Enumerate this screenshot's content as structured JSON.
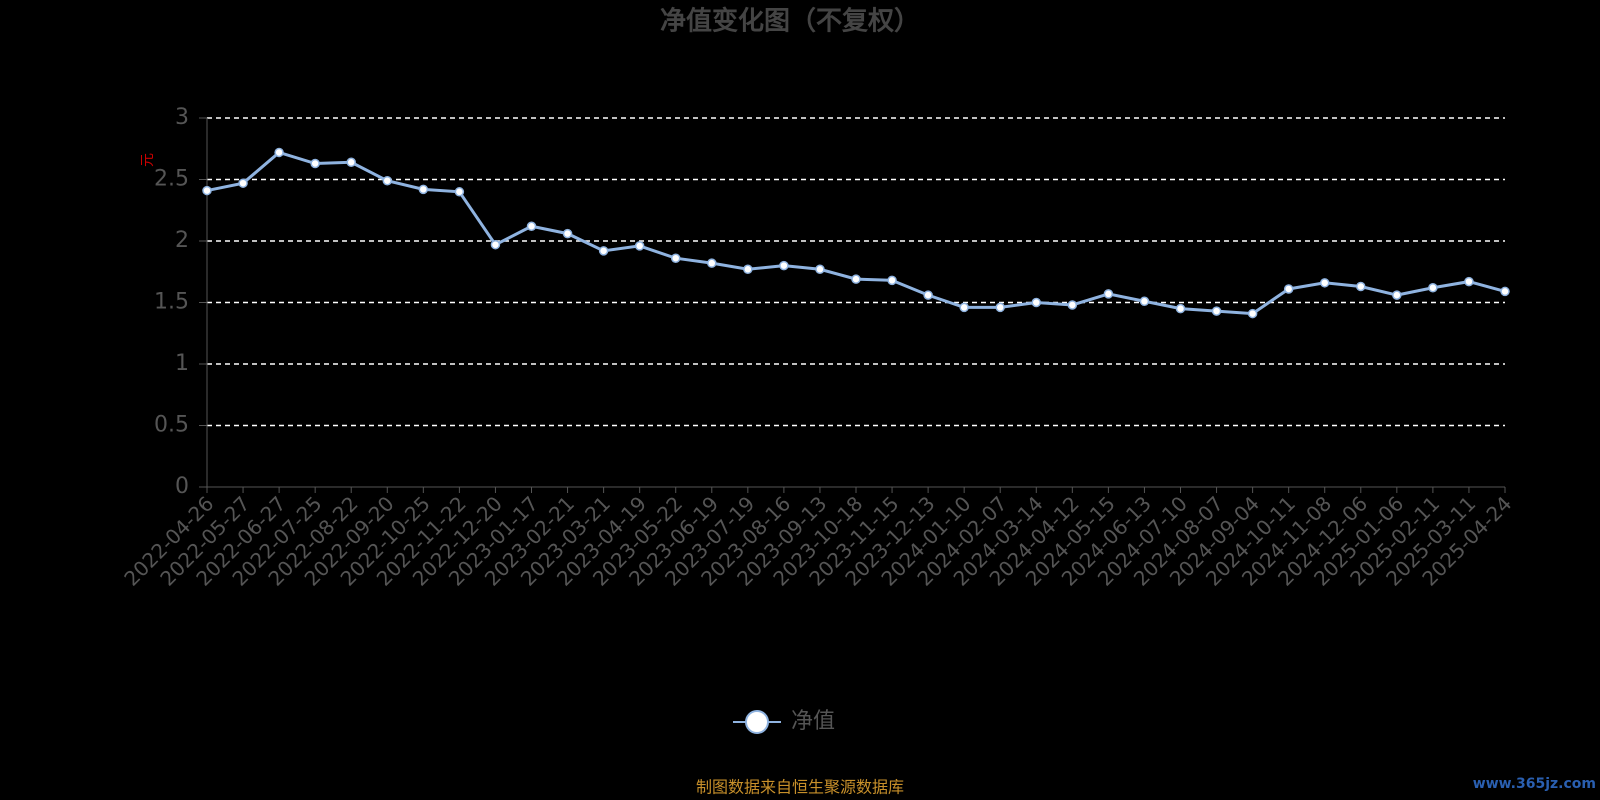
{
  "chart_data": {
    "type": "line",
    "title": "净值变化图（不复权）",
    "y_label": "元",
    "x": [
      "2022-04-26",
      "2022-05-27",
      "2022-06-27",
      "2022-07-25",
      "2022-08-22",
      "2022-09-20",
      "2022-10-25",
      "2022-11-22",
      "2022-12-20",
      "2023-01-17",
      "2023-02-21",
      "2023-03-21",
      "2023-04-19",
      "2023-05-22",
      "2023-06-19",
      "2023-07-19",
      "2023-08-16",
      "2023-09-13",
      "2023-10-18",
      "2023-11-15",
      "2023-12-13",
      "2024-01-10",
      "2024-02-07",
      "2024-03-14",
      "2024-04-12",
      "2024-05-15",
      "2024-06-13",
      "2024-07-10",
      "2024-08-07",
      "2024-09-04",
      "2024-10-11",
      "2024-11-08",
      "2024-12-06",
      "2025-01-06",
      "2025-02-11",
      "2025-03-11",
      "2025-04-24"
    ],
    "series": [
      {
        "name": "净值",
        "color": "#8fb3e0",
        "values": [
          2.41,
          2.47,
          2.72,
          2.63,
          2.64,
          2.49,
          2.42,
          2.4,
          1.97,
          2.12,
          2.06,
          1.92,
          1.96,
          1.86,
          1.82,
          1.77,
          1.8,
          1.77,
          1.69,
          1.68,
          1.56,
          1.46,
          1.46,
          1.5,
          1.48,
          1.57,
          1.51,
          1.45,
          1.43,
          1.41,
          1.61,
          1.66,
          1.63,
          1.56,
          1.62,
          1.67,
          1.59
        ]
      }
    ],
    "ylim": [
      0,
      3
    ],
    "yticks": [
      0,
      0.5,
      1,
      1.5,
      2,
      2.5,
      3
    ],
    "grid": true,
    "source": "制图数据来自恒生聚源数据库",
    "watermark": "www.365jz.com"
  }
}
